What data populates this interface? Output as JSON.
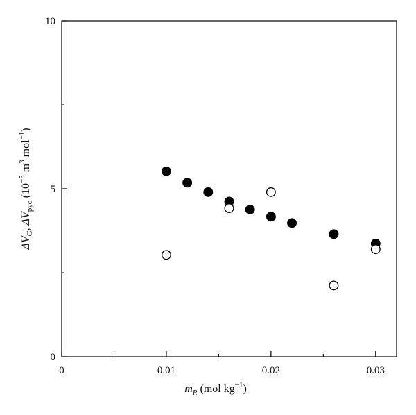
{
  "chart_data": {
    "type": "scatter",
    "title": "",
    "xlabel": {
      "base": "m",
      "sub": "R",
      "unit_pre": " (mol kg",
      "unit_sup": "−1",
      "unit_post": ")"
    },
    "ylabel": {
      "part1": "ΔV",
      "sub1": "G",
      "sep": ", ΔV",
      "sub2": "pyc",
      "unit_pre": " (10",
      "sup1": "−5",
      "unit_mid": " m",
      "sup2": "3",
      "unit_mid2": " mol",
      "sup3": "−1",
      "unit_post": ")"
    },
    "xlim": [
      0,
      0.032
    ],
    "ylim": [
      0,
      10
    ],
    "x_ticks": [
      {
        "value": 0,
        "label": "0"
      },
      {
        "value": 0.01,
        "label": "0.01"
      },
      {
        "value": 0.02,
        "label": "0.02"
      },
      {
        "value": 0.03,
        "label": "0.03"
      }
    ],
    "x_minor_ticks": [
      0.005,
      0.015,
      0.025
    ],
    "y_ticks": [
      {
        "value": 0,
        "label": "0"
      },
      {
        "value": 5,
        "label": "5"
      },
      {
        "value": 10,
        "label": "10"
      }
    ],
    "y_minor_ticks": [
      2.5,
      7.5
    ],
    "grid": false,
    "series": [
      {
        "marker": "filled-circle",
        "color": "#000000",
        "points": [
          {
            "x": 0.01,
            "y": 5.52
          },
          {
            "x": 0.012,
            "y": 5.18
          },
          {
            "x": 0.014,
            "y": 4.9
          },
          {
            "x": 0.016,
            "y": 4.62
          },
          {
            "x": 0.018,
            "y": 4.38
          },
          {
            "x": 0.02,
            "y": 4.17
          },
          {
            "x": 0.022,
            "y": 3.98
          },
          {
            "x": 0.026,
            "y": 3.65
          },
          {
            "x": 0.03,
            "y": 3.37
          }
        ]
      },
      {
        "marker": "open-circle",
        "color": "#000000",
        "points": [
          {
            "x": 0.01,
            "y": 3.03
          },
          {
            "x": 0.016,
            "y": 4.42
          },
          {
            "x": 0.02,
            "y": 4.9
          },
          {
            "x": 0.026,
            "y": 2.12
          },
          {
            "x": 0.03,
            "y": 3.2
          }
        ]
      }
    ]
  }
}
